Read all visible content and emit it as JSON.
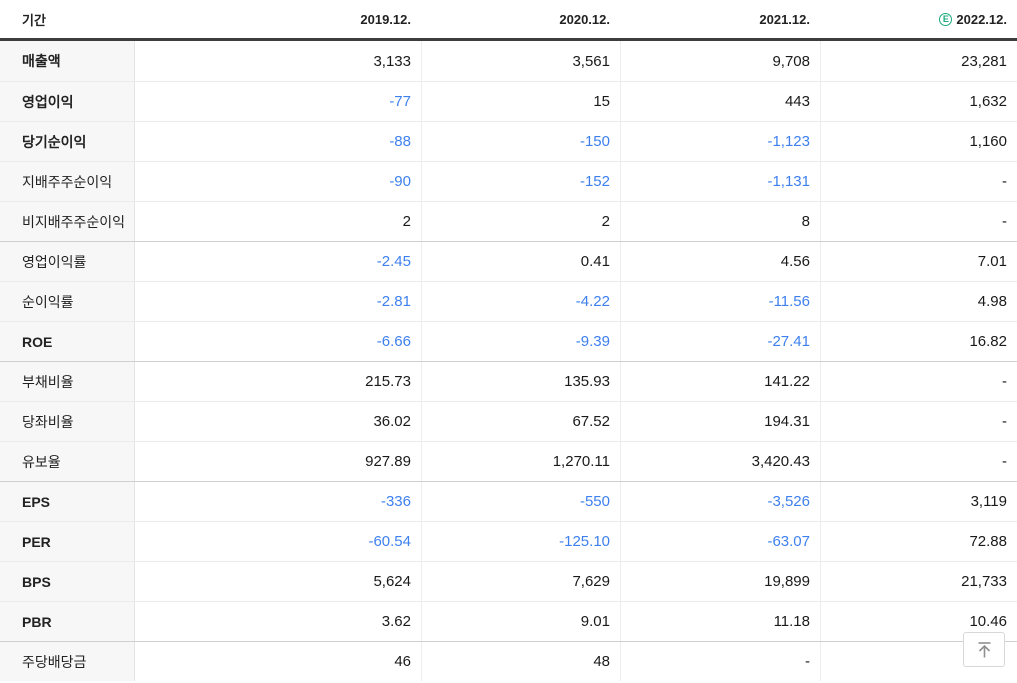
{
  "table": {
    "header": {
      "period_label": "기간",
      "columns": [
        "2019.12.",
        "2020.12.",
        "2021.12.",
        "2022.12."
      ],
      "estimate_badge": "E",
      "estimate_column_index": 3
    },
    "rows": [
      {
        "label": "매출액",
        "bold": true,
        "group_start": false,
        "values": [
          "3,133",
          "3,561",
          "9,708",
          "23,281"
        ]
      },
      {
        "label": "영업이익",
        "bold": true,
        "group_start": false,
        "values": [
          "-77",
          "15",
          "443",
          "1,632"
        ]
      },
      {
        "label": "당기순이익",
        "bold": true,
        "group_start": false,
        "values": [
          "-88",
          "-150",
          "-1,123",
          "1,160"
        ]
      },
      {
        "label": "지배주주순이익",
        "bold": false,
        "group_start": false,
        "values": [
          "-90",
          "-152",
          "-1,131",
          "-"
        ]
      },
      {
        "label": "비지배주주순이익",
        "bold": false,
        "group_start": false,
        "values": [
          "2",
          "2",
          "8",
          "-"
        ]
      },
      {
        "label": "영업이익률",
        "bold": false,
        "group_start": true,
        "values": [
          "-2.45",
          "0.41",
          "4.56",
          "7.01"
        ]
      },
      {
        "label": "순이익률",
        "bold": false,
        "group_start": false,
        "values": [
          "-2.81",
          "-4.22",
          "-11.56",
          "4.98"
        ]
      },
      {
        "label": "ROE",
        "bold": true,
        "group_start": false,
        "values": [
          "-6.66",
          "-9.39",
          "-27.41",
          "16.82"
        ]
      },
      {
        "label": "부채비율",
        "bold": false,
        "group_start": true,
        "values": [
          "215.73",
          "135.93",
          "141.22",
          "-"
        ]
      },
      {
        "label": "당좌비율",
        "bold": false,
        "group_start": false,
        "values": [
          "36.02",
          "67.52",
          "194.31",
          "-"
        ]
      },
      {
        "label": "유보율",
        "bold": false,
        "group_start": false,
        "values": [
          "927.89",
          "1,270.11",
          "3,420.43",
          "-"
        ]
      },
      {
        "label": "EPS",
        "bold": true,
        "group_start": true,
        "values": [
          "-336",
          "-550",
          "-3,526",
          "3,119"
        ]
      },
      {
        "label": "PER",
        "bold": true,
        "group_start": false,
        "values": [
          "-60.54",
          "-125.10",
          "-63.07",
          "72.88"
        ]
      },
      {
        "label": "BPS",
        "bold": true,
        "group_start": false,
        "values": [
          "5,624",
          "7,629",
          "19,899",
          "21,733"
        ]
      },
      {
        "label": "PBR",
        "bold": true,
        "group_start": false,
        "values": [
          "3.62",
          "9.01",
          "11.18",
          "10.46"
        ]
      },
      {
        "label": "주당배당금",
        "bold": false,
        "group_start": true,
        "values": [
          "46",
          "48",
          "-",
          ""
        ]
      }
    ]
  },
  "colors": {
    "negative_value": "#3e80ee",
    "estimate_badge_green": "#1aaa7c",
    "header_border": "#3d3d3d",
    "label_column_bg": "#f7f7f7",
    "row_separator": "#ebebeb",
    "group_separator": "#cfcfcf"
  },
  "scroll_top_button": {
    "icon": "arrow-up-to-top"
  }
}
